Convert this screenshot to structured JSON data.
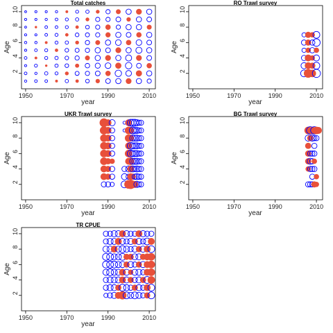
{
  "colors": {
    "positive": "#0000ff",
    "negative": "#e8503a",
    "axis": "#000000",
    "background": "#ffffff"
  },
  "chart_data": [
    {
      "type": "scatter",
      "subtype": "bubble",
      "title": "Total catches",
      "xlabel": "year",
      "ylabel": "Age",
      "xlim": [
        1948,
        2013
      ],
      "ylim": [
        0,
        10.8
      ],
      "xticks": [
        1950,
        1970,
        1990,
        2010
      ],
      "yticks": [
        2,
        4,
        6,
        8,
        10
      ],
      "x": [
        1950,
        1955,
        1960,
        1965,
        1970,
        1975,
        1980,
        1985,
        1990,
        1995,
        2000,
        2005,
        2010
      ],
      "ages": [
        1,
        2,
        3,
        4,
        5,
        6,
        7,
        8,
        9,
        10
      ],
      "series": [
        {
          "name": "",
          "residuals": [
            0.06,
            0.08,
            0.08,
            -0.08,
            0.12,
            -0.12,
            0.15,
            -0.2,
            0.25,
            0.3,
            -0.35,
            0.3,
            0.2
          ]
        },
        {
          "name": "",
          "residuals": [
            0.08,
            0.06,
            0.12,
            0.1,
            -0.15,
            0.18,
            0.2,
            0.25,
            -0.3,
            0.45,
            0.35,
            -0.4,
            0.3
          ]
        },
        {
          "name": "",
          "residuals": [
            0.05,
            0.1,
            -0.06,
            0.12,
            0.15,
            -0.18,
            0.22,
            0.28,
            0.35,
            -0.4,
            0.45,
            0.25,
            -0.3
          ]
        },
        {
          "name": "",
          "residuals": [
            0.08,
            -0.08,
            0.1,
            0.12,
            0.15,
            0.2,
            -0.25,
            0.3,
            -0.35,
            0.3,
            0.4,
            -0.35,
            0.25
          ]
        },
        {
          "name": "",
          "residuals": [
            0.05,
            0.08,
            0.1,
            -0.12,
            0.15,
            0.18,
            0.2,
            0.3,
            0.25,
            -0.35,
            0.3,
            0.4,
            0.3
          ]
        },
        {
          "name": "",
          "residuals": [
            0.06,
            0.06,
            -0.08,
            0.1,
            0.12,
            -0.15,
            0.2,
            -0.25,
            0.3,
            0.35,
            -0.3,
            0.35,
            0.25
          ]
        },
        {
          "name": "",
          "residuals": [
            0.05,
            0.05,
            0.08,
            0.1,
            -0.12,
            0.15,
            0.18,
            0.2,
            -0.28,
            0.3,
            0.25,
            -0.3,
            0.3
          ]
        },
        {
          "name": "",
          "residuals": [
            0.04,
            -0.06,
            0.08,
            0.08,
            0.1,
            -0.12,
            0.15,
            0.2,
            -0.3,
            0.2,
            0.3,
            0.3,
            -0.25
          ]
        },
        {
          "name": "",
          "residuals": [
            0.05,
            0.05,
            0.06,
            0.08,
            0.1,
            0.12,
            -0.15,
            0.2,
            0.2,
            0.25,
            -0.2,
            0.3,
            0.25
          ]
        },
        {
          "name": "",
          "residuals": [
            0.04,
            0.05,
            0.05,
            0.06,
            -0.08,
            0.1,
            0.12,
            -0.15,
            0.2,
            -0.25,
            0.3,
            -0.35,
            0.3
          ]
        }
      ]
    },
    {
      "type": "scatter",
      "subtype": "bubble",
      "title": "RO Trawl survey",
      "xlabel": "year",
      "ylabel": "Age",
      "xlim": [
        1948,
        2013
      ],
      "ylim": [
        0,
        10.8
      ],
      "xticks": [
        1950,
        1970,
        1990,
        2010
      ],
      "yticks": [
        2,
        4,
        6,
        8,
        10
      ],
      "x": [
        2004,
        2006,
        2008,
        2010
      ],
      "ages": [
        2,
        3,
        4,
        5,
        6,
        7
      ],
      "series": [
        {
          "name": "",
          "residuals": [
            0.5,
            -0.8,
            -0.6,
            0.7
          ]
        },
        {
          "name": "",
          "residuals": [
            0.4,
            -0.5,
            -0.4,
            0.5
          ]
        },
        {
          "name": "",
          "residuals": [
            0.3,
            -0.5,
            -0.3,
            0.4
          ]
        },
        {
          "name": "",
          "residuals": [
            0.2,
            -0.3,
            0.3,
            -0.3
          ]
        },
        {
          "name": "",
          "residuals": [
            0.3,
            -0.4,
            0.3,
            0.6
          ]
        },
        {
          "name": "",
          "residuals": [
            0.2,
            -0.4,
            -0.3,
            0.5
          ]
        }
      ]
    },
    {
      "type": "scatter",
      "subtype": "bubble",
      "title": "UKR Trawl survey",
      "xlabel": "year",
      "ylabel": "Age",
      "xlim": [
        1948,
        2013
      ],
      "ylim": [
        0,
        10.8
      ],
      "xticks": [
        1950,
        1970,
        1990,
        2010
      ],
      "yticks": [
        2,
        4,
        6,
        8,
        10
      ],
      "x": [
        1988,
        1990,
        1992,
        1994,
        1998,
        2000,
        2001,
        2002,
        2003,
        2004,
        2005,
        2006
      ],
      "ages": [
        2,
        3,
        4,
        5,
        6,
        7,
        8,
        9,
        10
      ],
      "series": [
        {
          "name": "",
          "residuals": [
            0.3,
            0.3,
            0.2,
            null,
            0.5,
            -0.8,
            -0.9,
            -0.6,
            -0.5,
            0.4,
            0.3,
            0.3
          ]
        },
        {
          "name": "",
          "residuals": [
            -0.5,
            -0.4,
            0.3,
            null,
            0.4,
            0.3,
            -0.5,
            -0.4,
            0.3,
            0.4,
            0.3,
            0.3
          ]
        },
        {
          "name": "",
          "residuals": [
            -0.5,
            -0.4,
            0.3,
            null,
            0.3,
            0.4,
            -0.5,
            0.4,
            0.3,
            0.4,
            0.3,
            0.3
          ]
        },
        {
          "name": "",
          "residuals": [
            -0.6,
            -0.4,
            -0.3,
            null,
            null,
            -0.5,
            -0.6,
            0.4,
            0.4,
            0.4,
            0.3,
            0.3
          ]
        },
        {
          "name": "",
          "residuals": [
            -0.6,
            -0.5,
            0.3,
            null,
            null,
            -0.6,
            0.5,
            0.4,
            0.4,
            0.4,
            0.3,
            0.3
          ]
        },
        {
          "name": "",
          "residuals": [
            -0.6,
            -0.5,
            0.3,
            null,
            null,
            -0.5,
            0.5,
            0.4,
            0.4,
            0.4,
            0.3,
            0.3
          ]
        },
        {
          "name": "",
          "residuals": [
            -0.6,
            -0.5,
            0.3,
            null,
            null,
            -0.6,
            -0.5,
            0.4,
            0.4,
            0.4,
            0.3,
            0.3
          ]
        },
        {
          "name": "",
          "residuals": [
            -0.7,
            -0.5,
            0.3,
            null,
            0.1,
            -0.6,
            -0.5,
            0.5,
            0.4,
            0.4,
            0.3,
            0.3
          ]
        },
        {
          "name": "",
          "residuals": [
            -0.8,
            -0.5,
            0.4,
            null,
            0.1,
            -0.5,
            0.5,
            0.5,
            0.5,
            0.4,
            0.3,
            0.3
          ]
        }
      ]
    },
    {
      "type": "scatter",
      "subtype": "bubble",
      "title": "BG Trawl survey",
      "xlabel": "year",
      "ylabel": "Age",
      "xlim": [
        1948,
        2013
      ],
      "ylim": [
        0,
        10.8
      ],
      "xticks": [
        1950,
        1970,
        1990,
        2010
      ],
      "yticks": [
        2,
        4,
        6,
        8,
        10
      ],
      "x": [
        2006,
        2007,
        2008,
        2009,
        2010,
        2011
      ],
      "ages": [
        2,
        3,
        4,
        5,
        6,
        7,
        8,
        9
      ],
      "series": [
        {
          "name": "",
          "residuals": [
            0.3,
            0.3,
            0.3,
            -0.4,
            -0.3,
            null
          ]
        },
        {
          "name": "",
          "residuals": [
            null,
            null,
            0.3,
            null,
            -0.3,
            null
          ]
        },
        {
          "name": "",
          "residuals": [
            -0.3,
            0.3,
            0.3,
            0.3,
            null,
            null
          ]
        },
        {
          "name": "",
          "residuals": [
            -0.4,
            0.4,
            0.3,
            -0.3,
            null,
            null
          ]
        },
        {
          "name": "",
          "residuals": [
            -0.4,
            0.3,
            0.3,
            0.3,
            null,
            null
          ]
        },
        {
          "name": "",
          "residuals": [
            -0.4,
            null,
            null,
            0.3,
            null,
            null
          ]
        },
        {
          "name": "",
          "residuals": [
            0.4,
            -0.4,
            0.4,
            0.3,
            0.3,
            null
          ]
        },
        {
          "name": "",
          "residuals": [
            -0.6,
            0.6,
            -0.6,
            0.6,
            -0.6,
            -0.5
          ]
        }
      ]
    },
    {
      "type": "scatter",
      "subtype": "bubble",
      "title": "TR CPUE",
      "xlabel": "year",
      "ylabel": "Age",
      "xlim": [
        1948,
        2013
      ],
      "ylim": [
        0,
        10.8
      ],
      "xticks": [
        1950,
        1970,
        1990,
        2010
      ],
      "yticks": [
        2,
        4,
        6,
        8,
        10
      ],
      "x": [
        1989,
        1991,
        1993,
        1995,
        1997,
        1999,
        2001,
        2003,
        2005,
        2007,
        2009,
        2011
      ],
      "ages": [
        2,
        3,
        4,
        5,
        6,
        7,
        8,
        9,
        10
      ],
      "series": [
        {
          "name": "",
          "residuals": [
            0.2,
            0.3,
            0.4,
            -0.5,
            -0.7,
            0.5,
            0.4,
            0.5,
            0.4,
            0.3,
            -0.4,
            0.5
          ]
        },
        {
          "name": "",
          "residuals": [
            0.3,
            0.4,
            0.4,
            -0.4,
            0.5,
            0.4,
            0.3,
            -0.4,
            0.4,
            0.3,
            -0.5,
            0.5
          ]
        },
        {
          "name": "",
          "residuals": [
            0.3,
            0.4,
            0.4,
            0.4,
            -0.5,
            0.4,
            -0.4,
            0.3,
            0.4,
            -0.4,
            0.5,
            -0.6
          ]
        },
        {
          "name": "",
          "residuals": [
            0.4,
            0.5,
            0.4,
            0.4,
            -0.5,
            0.4,
            -0.3,
            0.4,
            0.4,
            0.3,
            -0.5,
            -0.6
          ]
        },
        {
          "name": "",
          "residuals": [
            0.5,
            0.5,
            0.5,
            0.4,
            0.4,
            -0.4,
            0.4,
            0.3,
            -0.4,
            0.4,
            -0.5,
            -0.6
          ]
        },
        {
          "name": "",
          "residuals": [
            0.5,
            0.5,
            0.4,
            0.4,
            0.5,
            -0.4,
            -0.4,
            0.4,
            0.4,
            -0.4,
            -0.5,
            -0.6
          ]
        },
        {
          "name": "",
          "residuals": [
            0.4,
            0.4,
            -0.5,
            0.4,
            0.5,
            0.4,
            0.3,
            0.4,
            -0.4,
            0.4,
            -0.5,
            0.5
          ]
        },
        {
          "name": "",
          "residuals": [
            0.3,
            0.4,
            0.4,
            -0.5,
            0.4,
            0.3,
            0.4,
            -0.4,
            0.4,
            0.3,
            0.5,
            -0.5
          ]
        },
        {
          "name": "",
          "residuals": [
            0.3,
            0.3,
            0.4,
            0.4,
            -0.5,
            0.4,
            0.3,
            0.3,
            -0.5,
            0.4,
            0.3,
            0.3
          ]
        }
      ]
    }
  ]
}
